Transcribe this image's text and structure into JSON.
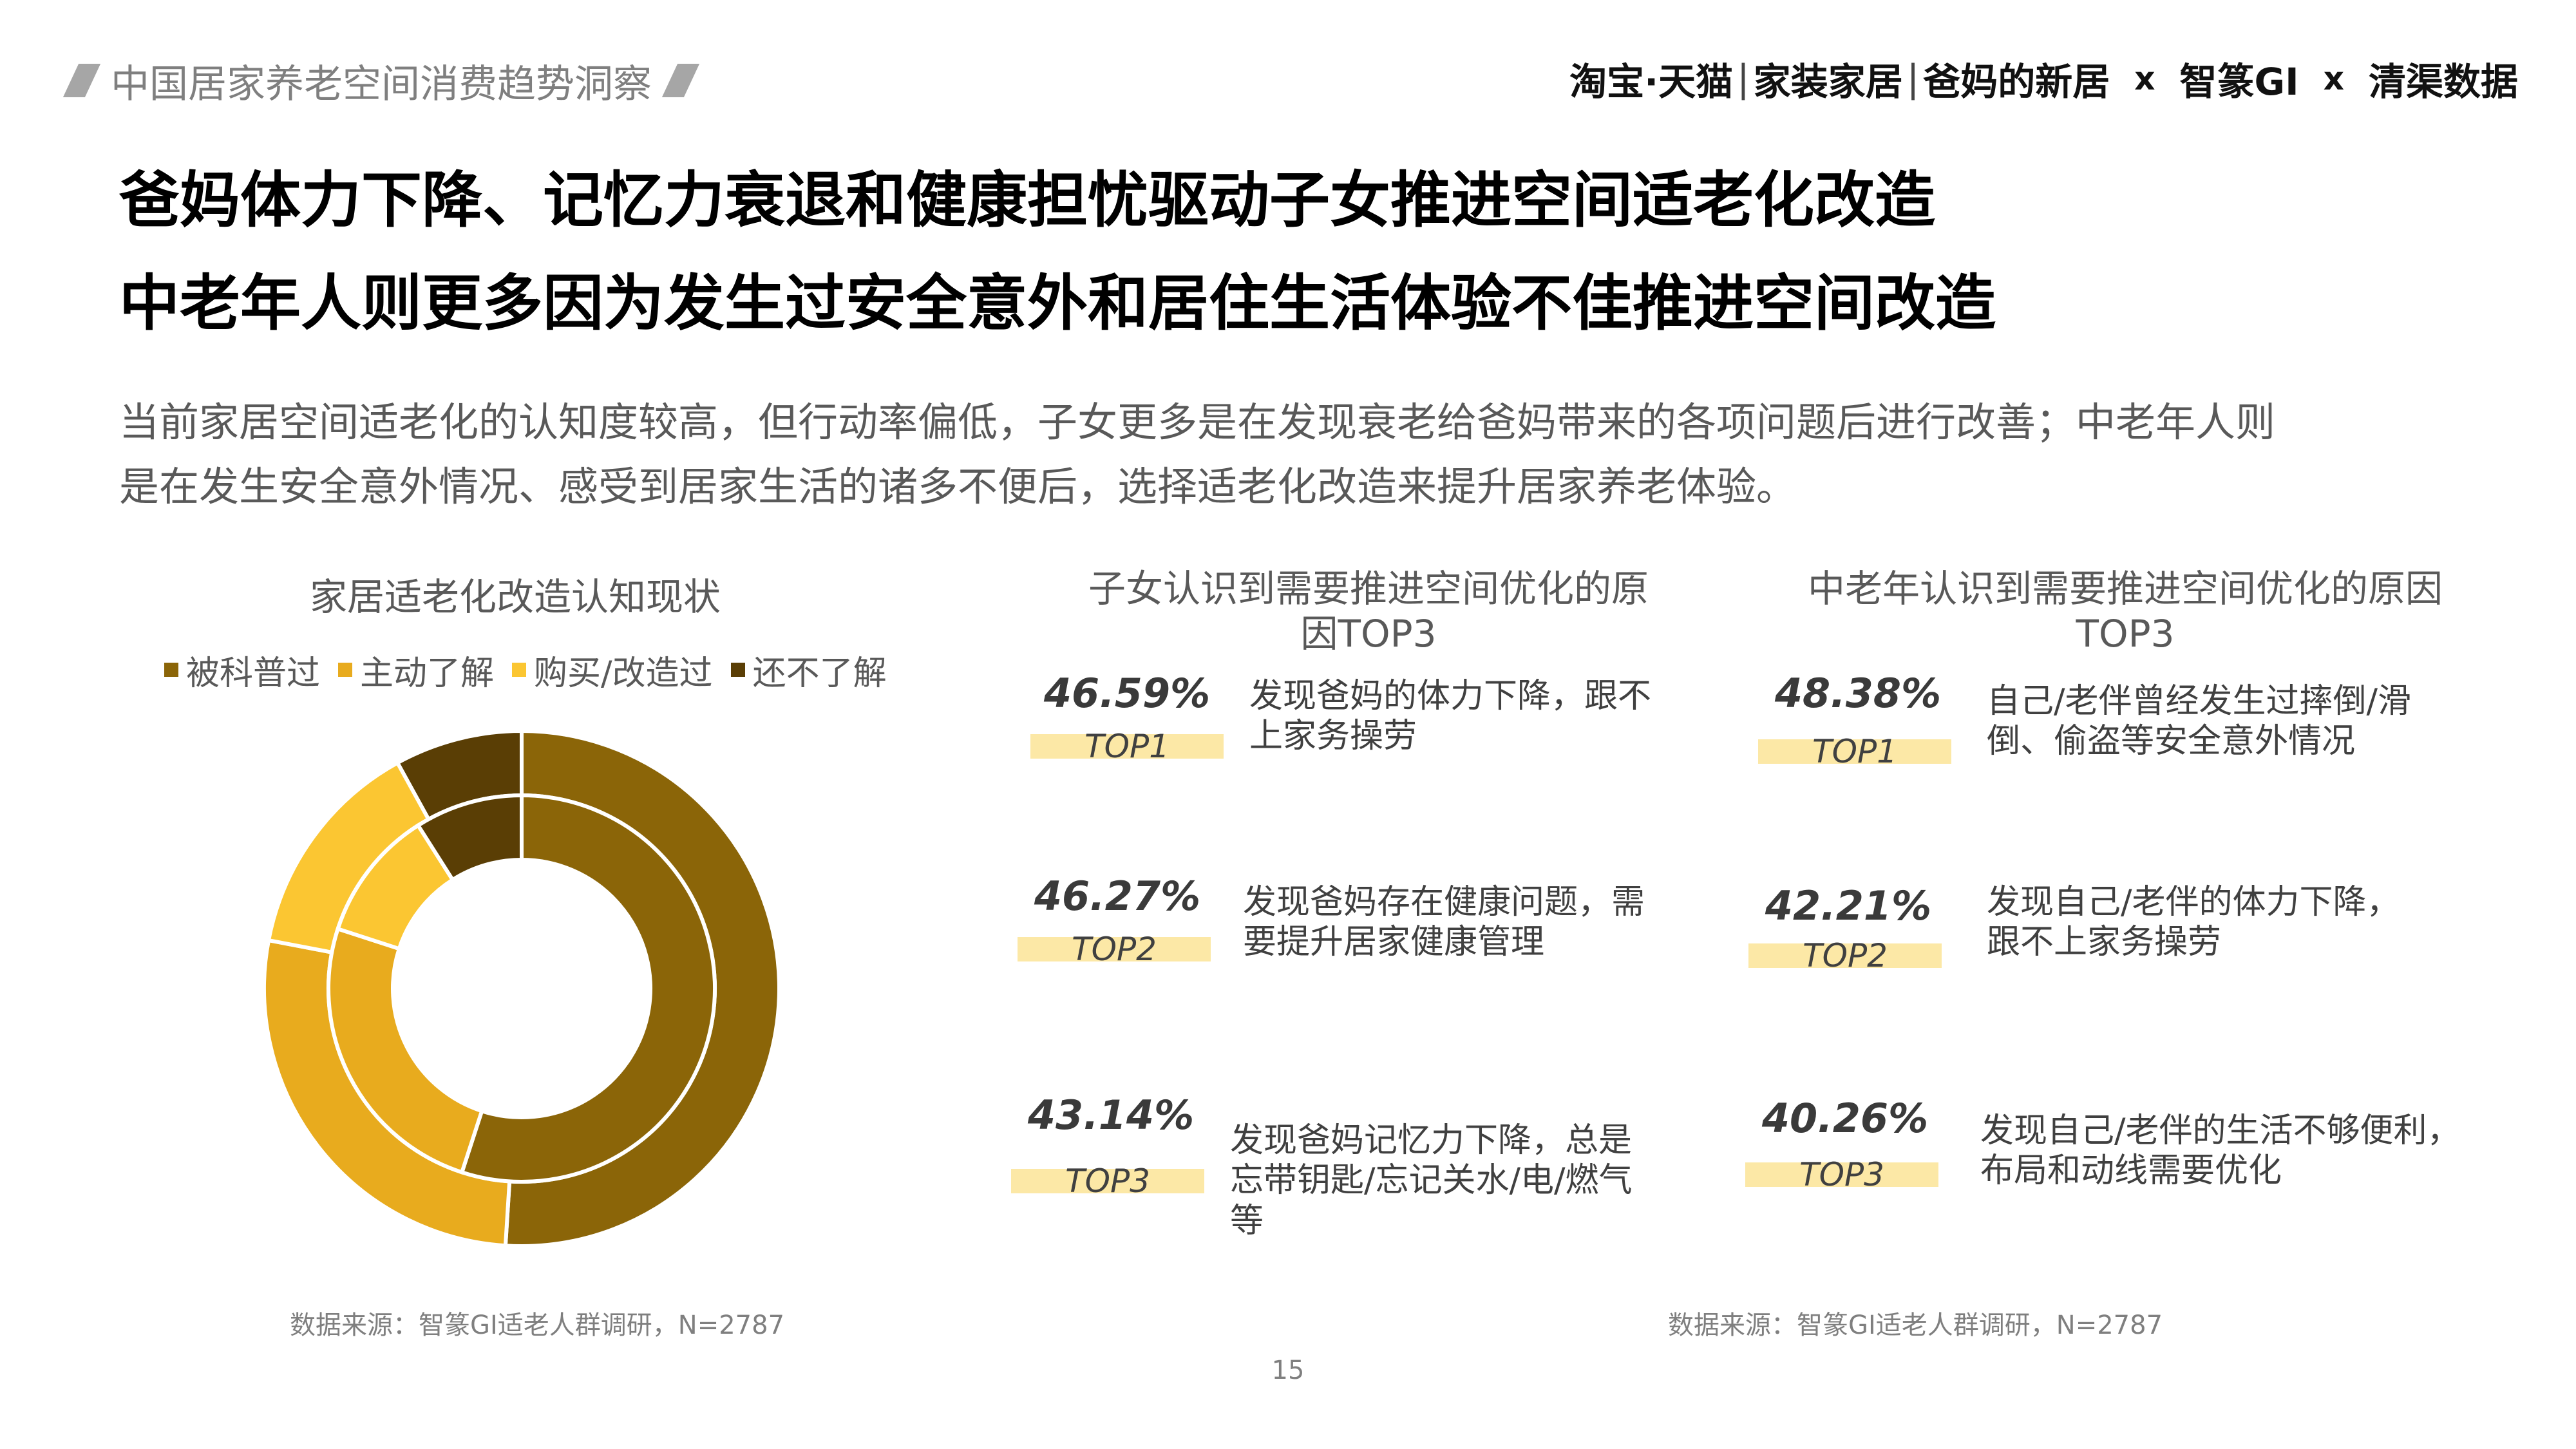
{
  "header": {
    "section_title": "中国居家养老空间消费趋势洞察",
    "brand": {
      "part1": "淘宝·天猫",
      "part2": "家装家居",
      "part3": "爸妈的新居",
      "x1": "x",
      "part4": "智篆GI",
      "x2": "x",
      "part5": "清渠数据"
    }
  },
  "headline": {
    "line1": "爸妈体力下降、记忆力衰退和健康担忧驱动子女推进空间适老化改造",
    "line2": "中老年人则更多因为发生过安全意外和居住生活体验不佳推进空间改造"
  },
  "intro": {
    "line1": "当前家居空间适老化的认知度较高，但行动率偏低，子女更多是在发现衰老给爸妈带来的各项问题后进行改善；中老年人则",
    "line2": "是在发生安全意外情况、感受到居家生活的诸多不便后，选择适老化改造来提升居家养老体验。"
  },
  "chart_data": {
    "type": "pie",
    "title": "家居适老化改造认知现状",
    "legend_position": "top",
    "categories": [
      "被科普过",
      "主动了解",
      "购买/改造过",
      "还不了解"
    ],
    "colors": [
      "#8b6508",
      "#e8ab1e",
      "#fbc632",
      "#5a3e05"
    ],
    "series": [
      {
        "ring": "outer",
        "values": [
          51,
          27,
          14,
          8
        ]
      },
      {
        "ring": "inner",
        "values": [
          55,
          25,
          11,
          9
        ]
      }
    ]
  },
  "kids_panel": {
    "title_line1": "子女认识到需要推进空间优化的原",
    "title_line2": "因TOP3",
    "items": [
      {
        "pct": "46.59%",
        "rank": "TOP1",
        "line1": "发现爸妈的体力下降，跟不",
        "line2": "上家务操劳",
        "line3": ""
      },
      {
        "pct": "46.27%",
        "rank": "TOP2",
        "line1": "发现爸妈存在健康问题，需",
        "line2": "要提升居家健康管理",
        "line3": ""
      },
      {
        "pct": "43.14%",
        "rank": "TOP3",
        "line1": "发现爸妈记忆力下降，总是",
        "line2": "忘带钥匙/忘记关水/电/燃气",
        "line3": "等"
      }
    ]
  },
  "seniors_panel": {
    "title_line1": "中老年认识到需要推进空间优化的原因",
    "title_line2": "TOP3",
    "items": [
      {
        "pct": "48.38%",
        "rank": "TOP1",
        "line1": "自己/老伴曾经发生过摔倒/滑",
        "line2": "倒、偷盗等安全意外情况"
      },
      {
        "pct": "42.21%",
        "rank": "TOP2",
        "line1": "发现自己/老伴的体力下降，",
        "line2": "跟不上家务操劳"
      },
      {
        "pct": "40.26%",
        "rank": "TOP3",
        "line1": "发现自己/老伴的生活不够便利，",
        "line2": "布局和动线需要优化"
      }
    ]
  },
  "sources": {
    "left": "数据来源：智篆GI适老人群调研，N=2787",
    "right": "数据来源：智篆GI适老人群调研，N=2787"
  },
  "page_number": "15"
}
